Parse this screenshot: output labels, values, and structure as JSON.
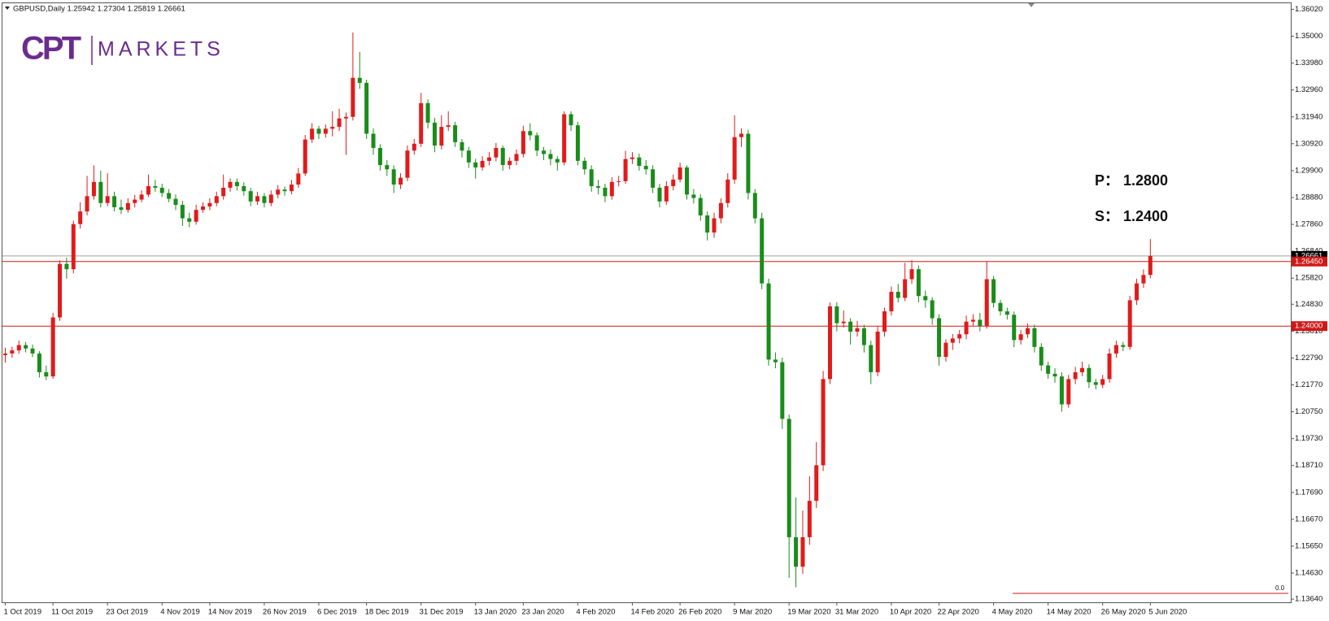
{
  "chart_data": {
    "type": "candlestick",
    "header": "GBPUSD,Daily  1.25942  1.27304  1.25819  1.26661",
    "logo": {
      "mark": "CPT",
      "text": "MARKETS"
    },
    "annotations": [
      "P：  1.2800",
      "S：  1.2400"
    ],
    "indicator_label": "0.0",
    "up_color": "#e01b1b",
    "down_color": "#1a8c1a",
    "ylim": [
      1.1352,
      1.3625
    ],
    "yticks": [
      {
        "value": 1.3602,
        "label": "1.36020"
      },
      {
        "value": 1.35,
        "label": "1.35000"
      },
      {
        "value": 1.3398,
        "label": "1.33980"
      },
      {
        "value": 1.3296,
        "label": "1.32960"
      },
      {
        "value": 1.3194,
        "label": "1.31940"
      },
      {
        "value": 1.3092,
        "label": "1.30920"
      },
      {
        "value": 1.299,
        "label": "1.29900"
      },
      {
        "value": 1.2888,
        "label": "1.28880"
      },
      {
        "value": 1.2786,
        "label": "1.27860"
      },
      {
        "value": 1.2684,
        "label": "1.26840"
      },
      {
        "value": 1.2582,
        "label": "1.25820"
      },
      {
        "value": 1.2483,
        "label": "1.24830"
      },
      {
        "value": 1.2381,
        "label": "1.23810"
      },
      {
        "value": 1.2279,
        "label": "1.22790"
      },
      {
        "value": 1.2177,
        "label": "1.21770"
      },
      {
        "value": 1.2075,
        "label": "1.20750"
      },
      {
        "value": 1.1973,
        "label": "1.19730"
      },
      {
        "value": 1.1871,
        "label": "1.18710"
      },
      {
        "value": 1.1769,
        "label": "1.17690"
      },
      {
        "value": 1.1667,
        "label": "1.16670"
      },
      {
        "value": 1.1565,
        "label": "1.15650"
      },
      {
        "value": 1.1463,
        "label": "1.14630"
      },
      {
        "value": 1.1364,
        "label": "1.13640"
      }
    ],
    "levels": [
      {
        "value": 1.2645,
        "label": "1.26450",
        "color": "#d01818"
      },
      {
        "value": 1.24,
        "label": "1.24000",
        "color": "#d01818"
      }
    ],
    "last_price": {
      "value": 1.26661,
      "label": "1.26661",
      "color": "#9aa39a"
    },
    "categories": [
      "1 Oct 2019",
      null,
      null,
      null,
      null,
      null,
      null,
      "11 Oct 2019",
      null,
      null,
      null,
      null,
      null,
      null,
      null,
      "23 Oct 2019",
      null,
      null,
      null,
      null,
      null,
      null,
      null,
      "4 Nov 2019",
      null,
      null,
      null,
      null,
      null,
      null,
      "14 Nov 2019",
      null,
      null,
      null,
      null,
      null,
      null,
      null,
      "26 Nov 2019",
      null,
      null,
      null,
      null,
      null,
      null,
      null,
      "6 Dec 2019",
      null,
      null,
      null,
      null,
      null,
      null,
      "18 Dec 2019",
      null,
      null,
      null,
      null,
      null,
      null,
      null,
      "31 Dec 2019",
      null,
      null,
      null,
      null,
      null,
      null,
      null,
      "13 Jan 2020",
      null,
      null,
      null,
      null,
      null,
      null,
      "23 Jan 2020",
      null,
      null,
      null,
      null,
      null,
      null,
      null,
      "4 Feb 2020",
      null,
      null,
      null,
      null,
      null,
      null,
      null,
      "14 Feb 2020",
      null,
      null,
      null,
      null,
      null,
      null,
      "26 Feb 2020",
      null,
      null,
      null,
      null,
      null,
      null,
      null,
      "9 Mar 2020",
      null,
      null,
      null,
      null,
      null,
      null,
      null,
      "19 Mar 2020",
      null,
      null,
      null,
      null,
      null,
      null,
      "31 Mar 2020",
      null,
      null,
      null,
      null,
      null,
      null,
      null,
      "10 Apr 2020",
      null,
      null,
      null,
      null,
      null,
      null,
      "22 Apr 2020",
      null,
      null,
      null,
      null,
      null,
      null,
      null,
      "4 May 2020",
      null,
      null,
      null,
      null,
      null,
      null,
      null,
      "14 May 2020",
      null,
      null,
      null,
      null,
      null,
      null,
      null,
      "26 May 2020",
      null,
      null,
      null,
      null,
      null,
      null,
      "5 Jun 2020"
    ],
    "ohlc": [
      [
        1.229,
        1.2318,
        1.2262,
        1.2296
      ],
      [
        1.2296,
        1.2322,
        1.228,
        1.2308
      ],
      [
        1.2308,
        1.2345,
        1.2295,
        1.2328
      ],
      [
        1.2328,
        1.234,
        1.23,
        1.2315
      ],
      [
        1.2315,
        1.233,
        1.2282,
        1.2296
      ],
      [
        1.2296,
        1.2305,
        1.2205,
        1.2225
      ],
      [
        1.2225,
        1.225,
        1.2195,
        1.2209
      ],
      [
        1.2209,
        1.245,
        1.22,
        1.2433
      ],
      [
        1.2433,
        1.265,
        1.242,
        1.2636
      ],
      [
        1.2636,
        1.266,
        1.258,
        1.2616
      ],
      [
        1.2616,
        1.28,
        1.26,
        1.2787
      ],
      [
        1.2787,
        1.287,
        1.277,
        1.2835
      ],
      [
        1.2835,
        1.297,
        1.282,
        1.2893
      ],
      [
        1.2893,
        1.301,
        1.288,
        1.2947
      ],
      [
        1.2947,
        1.299,
        1.285,
        1.2867
      ],
      [
        1.2867,
        1.298,
        1.2855,
        1.2893
      ],
      [
        1.2893,
        1.291,
        1.2835,
        1.2851
      ],
      [
        1.2851,
        1.288,
        1.2825,
        1.2841
      ],
      [
        1.2841,
        1.2885,
        1.283,
        1.2867
      ],
      [
        1.2867,
        1.2898,
        1.285,
        1.288
      ],
      [
        1.288,
        1.2915,
        1.287,
        1.2899
      ],
      [
        1.2899,
        1.2975,
        1.289,
        1.2931
      ],
      [
        1.2931,
        1.2955,
        1.291,
        1.2925
      ],
      [
        1.2925,
        1.294,
        1.289,
        1.2905
      ],
      [
        1.2905,
        1.292,
        1.287,
        1.2883
      ],
      [
        1.2883,
        1.29,
        1.284,
        1.286
      ],
      [
        1.286,
        1.2875,
        1.278,
        1.2809
      ],
      [
        1.2809,
        1.283,
        1.2775,
        1.2796
      ],
      [
        1.2796,
        1.286,
        1.2785,
        1.2841
      ],
      [
        1.2841,
        1.287,
        1.283,
        1.2854
      ],
      [
        1.2854,
        1.2885,
        1.284,
        1.2867
      ],
      [
        1.2867,
        1.291,
        1.2855,
        1.2893
      ],
      [
        1.2893,
        1.2975,
        1.288,
        1.2925
      ],
      [
        1.2925,
        1.296,
        1.291,
        1.2947
      ],
      [
        1.2947,
        1.296,
        1.2915,
        1.2931
      ],
      [
        1.2931,
        1.2945,
        1.2895,
        1.2912
      ],
      [
        1.2912,
        1.2925,
        1.2855,
        1.2873
      ],
      [
        1.2873,
        1.291,
        1.286,
        1.2893
      ],
      [
        1.2893,
        1.2905,
        1.285,
        1.2867
      ],
      [
        1.2867,
        1.2915,
        1.2855,
        1.2899
      ],
      [
        1.2899,
        1.2935,
        1.2885,
        1.2918
      ],
      [
        1.2918,
        1.293,
        1.2895,
        1.2912
      ],
      [
        1.2912,
        1.2955,
        1.29,
        1.2937
      ],
      [
        1.2937,
        1.3,
        1.2925,
        1.2979
      ],
      [
        1.2979,
        1.3125,
        1.297,
        1.3108
      ],
      [
        1.3108,
        1.317,
        1.3095,
        1.3149
      ],
      [
        1.3149,
        1.316,
        1.311,
        1.313
      ],
      [
        1.313,
        1.3165,
        1.3115,
        1.3149
      ],
      [
        1.3149,
        1.3215,
        1.312,
        1.3156
      ],
      [
        1.3156,
        1.3225,
        1.314,
        1.3188
      ],
      [
        1.3188,
        1.321,
        1.305,
        1.3194
      ],
      [
        1.3194,
        1.3514,
        1.318,
        1.3342
      ],
      [
        1.3342,
        1.344,
        1.33,
        1.3323
      ],
      [
        1.3323,
        1.3335,
        1.311,
        1.313
      ],
      [
        1.313,
        1.315,
        1.305,
        1.3076
      ],
      [
        1.3076,
        1.309,
        1.299,
        1.3011
      ],
      [
        1.3011,
        1.303,
        1.297,
        1.2995
      ],
      [
        1.2995,
        1.301,
        1.2905,
        1.2937
      ],
      [
        1.2937,
        1.298,
        1.292,
        1.2963
      ],
      [
        1.2963,
        1.3085,
        1.295,
        1.3066
      ],
      [
        1.3066,
        1.311,
        1.305,
        1.3092
      ],
      [
        1.3092,
        1.3285,
        1.308,
        1.3246
      ],
      [
        1.3246,
        1.326,
        1.315,
        1.3172
      ],
      [
        1.3172,
        1.319,
        1.306,
        1.3085
      ],
      [
        1.3085,
        1.32,
        1.307,
        1.3156
      ],
      [
        1.3156,
        1.3215,
        1.314,
        1.3162
      ],
      [
        1.3162,
        1.3175,
        1.308,
        1.3098
      ],
      [
        1.3098,
        1.311,
        1.304,
        1.3066
      ],
      [
        1.3066,
        1.308,
        1.3,
        1.3021
      ],
      [
        1.3021,
        1.3035,
        1.296,
        1.3002
      ],
      [
        1.3002,
        1.3045,
        1.299,
        1.3027
      ],
      [
        1.3027,
        1.306,
        1.301,
        1.304
      ],
      [
        1.304,
        1.3095,
        1.3025,
        1.3076
      ],
      [
        1.3076,
        1.3085,
        1.299,
        1.3011
      ],
      [
        1.3011,
        1.304,
        1.2995,
        1.3027
      ],
      [
        1.3027,
        1.307,
        1.301,
        1.3053
      ],
      [
        1.3053,
        1.316,
        1.304,
        1.314
      ],
      [
        1.314,
        1.317,
        1.3105,
        1.3124
      ],
      [
        1.3124,
        1.3135,
        1.3045,
        1.3066
      ],
      [
        1.3066,
        1.308,
        1.303,
        1.3053
      ],
      [
        1.3053,
        1.307,
        1.301,
        1.3034
      ],
      [
        1.3034,
        1.3045,
        1.299,
        1.3021
      ],
      [
        1.3021,
        1.3215,
        1.301,
        1.3204
      ],
      [
        1.3204,
        1.3215,
        1.314,
        1.3162
      ],
      [
        1.3162,
        1.3175,
        1.301,
        1.3027
      ],
      [
        1.3027,
        1.304,
        1.2975,
        1.2995
      ],
      [
        1.2995,
        1.301,
        1.291,
        1.2931
      ],
      [
        1.2931,
        1.2955,
        1.29,
        1.2925
      ],
      [
        1.2925,
        1.294,
        1.287,
        1.2893
      ],
      [
        1.2893,
        1.2965,
        1.288,
        1.2947
      ],
      [
        1.2947,
        1.297,
        1.293,
        1.295
      ],
      [
        1.295,
        1.3065,
        1.294,
        1.3034
      ],
      [
        1.3034,
        1.306,
        1.3015,
        1.304
      ],
      [
        1.304,
        1.3055,
        1.299,
        1.3008
      ],
      [
        1.3008,
        1.303,
        1.2975,
        1.2995
      ],
      [
        1.2995,
        1.301,
        1.2905,
        1.2925
      ],
      [
        1.2925,
        1.294,
        1.285,
        1.2873
      ],
      [
        1.2873,
        1.295,
        1.286,
        1.2931
      ],
      [
        1.2931,
        1.2975,
        1.2915,
        1.2956
      ],
      [
        1.2956,
        1.302,
        1.2945,
        1.3002
      ],
      [
        1.3002,
        1.301,
        1.288,
        1.2899
      ],
      [
        1.2899,
        1.292,
        1.2865,
        1.2886
      ],
      [
        1.2886,
        1.29,
        1.28,
        1.282
      ],
      [
        1.282,
        1.2835,
        1.2725,
        1.2755
      ],
      [
        1.2755,
        1.283,
        1.2735,
        1.2809
      ],
      [
        1.2809,
        1.2885,
        1.279,
        1.2867
      ],
      [
        1.2867,
        1.298,
        1.285,
        1.2956
      ],
      [
        1.2956,
        1.32,
        1.294,
        1.3117
      ],
      [
        1.3117,
        1.315,
        1.308,
        1.313
      ],
      [
        1.313,
        1.3145,
        1.288,
        1.2905
      ],
      [
        1.2905,
        1.292,
        1.279,
        1.2809
      ],
      [
        1.2809,
        1.283,
        1.254,
        1.2562
      ],
      [
        1.2562,
        1.258,
        1.225,
        1.2273
      ],
      [
        1.2273,
        1.23,
        1.224,
        1.2263
      ],
      [
        1.2263,
        1.228,
        1.201,
        1.2048
      ],
      [
        1.2048,
        1.2065,
        1.1445,
        1.1599
      ],
      [
        1.1599,
        1.175,
        1.1409,
        1.1487
      ],
      [
        1.1487,
        1.17,
        1.146,
        1.1599
      ],
      [
        1.1599,
        1.183,
        1.157,
        1.1737
      ],
      [
        1.1737,
        1.196,
        1.171,
        1.1872
      ],
      [
        1.1872,
        1.223,
        1.185,
        1.2199
      ],
      [
        1.2199,
        1.249,
        1.218,
        1.2475
      ],
      [
        1.2475,
        1.249,
        1.238,
        1.2411
      ],
      [
        1.2411,
        1.246,
        1.2395,
        1.2417
      ],
      [
        1.2417,
        1.243,
        1.233,
        1.2379
      ],
      [
        1.2379,
        1.242,
        1.236,
        1.2392
      ],
      [
        1.2392,
        1.2405,
        1.23,
        1.2328
      ],
      [
        1.2328,
        1.2345,
        1.218,
        1.2225
      ],
      [
        1.2225,
        1.24,
        1.221,
        1.2379
      ],
      [
        1.2379,
        1.247,
        1.236,
        1.2456
      ],
      [
        1.2456,
        1.255,
        1.244,
        1.253
      ],
      [
        1.253,
        1.256,
        1.249,
        1.2507
      ],
      [
        1.2507,
        1.264,
        1.2495,
        1.2578
      ],
      [
        1.2578,
        1.265,
        1.256,
        1.2616
      ],
      [
        1.2616,
        1.263,
        1.249,
        1.2514
      ],
      [
        1.2514,
        1.2535,
        1.247,
        1.2498
      ],
      [
        1.2498,
        1.251,
        1.2405,
        1.243
      ],
      [
        1.243,
        1.2445,
        1.225,
        1.2283
      ],
      [
        1.2283,
        1.235,
        1.2265,
        1.2337
      ],
      [
        1.2337,
        1.237,
        1.231,
        1.2353
      ],
      [
        1.2353,
        1.2385,
        1.2335,
        1.2369
      ],
      [
        1.2369,
        1.244,
        1.235,
        1.2417
      ],
      [
        1.2417,
        1.2445,
        1.24,
        1.2424
      ],
      [
        1.2424,
        1.245,
        1.238,
        1.2401
      ],
      [
        1.2401,
        1.2645,
        1.239,
        1.2578
      ],
      [
        1.2578,
        1.259,
        1.247,
        1.2488
      ],
      [
        1.2488,
        1.25,
        1.244,
        1.2456
      ],
      [
        1.2456,
        1.247,
        1.2425,
        1.2443
      ],
      [
        1.2443,
        1.2455,
        1.232,
        1.2347
      ],
      [
        1.2347,
        1.2385,
        1.233,
        1.2369
      ],
      [
        1.2369,
        1.241,
        1.2355,
        1.2392
      ],
      [
        1.2392,
        1.2405,
        1.23,
        1.2321
      ],
      [
        1.2321,
        1.2335,
        1.223,
        1.2251
      ],
      [
        1.2251,
        1.2265,
        1.22,
        1.2219
      ],
      [
        1.2219,
        1.224,
        1.2185,
        1.2209
      ],
      [
        1.2209,
        1.2225,
        1.2075,
        1.2103
      ],
      [
        1.2103,
        1.2215,
        1.209,
        1.2199
      ],
      [
        1.2199,
        1.2245,
        1.218,
        1.2225
      ],
      [
        1.2225,
        1.2265,
        1.221,
        1.2241
      ],
      [
        1.2241,
        1.2255,
        1.2165,
        1.2187
      ],
      [
        1.2187,
        1.22,
        1.216,
        1.2177
      ],
      [
        1.2177,
        1.2215,
        1.2165,
        1.2199
      ],
      [
        1.2199,
        1.2315,
        1.2185,
        1.2296
      ],
      [
        1.2296,
        1.2345,
        1.228,
        1.2328
      ],
      [
        1.2328,
        1.234,
        1.2305,
        1.2321
      ],
      [
        1.2321,
        1.2515,
        1.231,
        1.2498
      ],
      [
        1.2498,
        1.258,
        1.248,
        1.2562
      ],
      [
        1.2562,
        1.2615,
        1.2545,
        1.2594
      ],
      [
        1.25942,
        1.27304,
        1.25819,
        1.26661
      ]
    ]
  }
}
